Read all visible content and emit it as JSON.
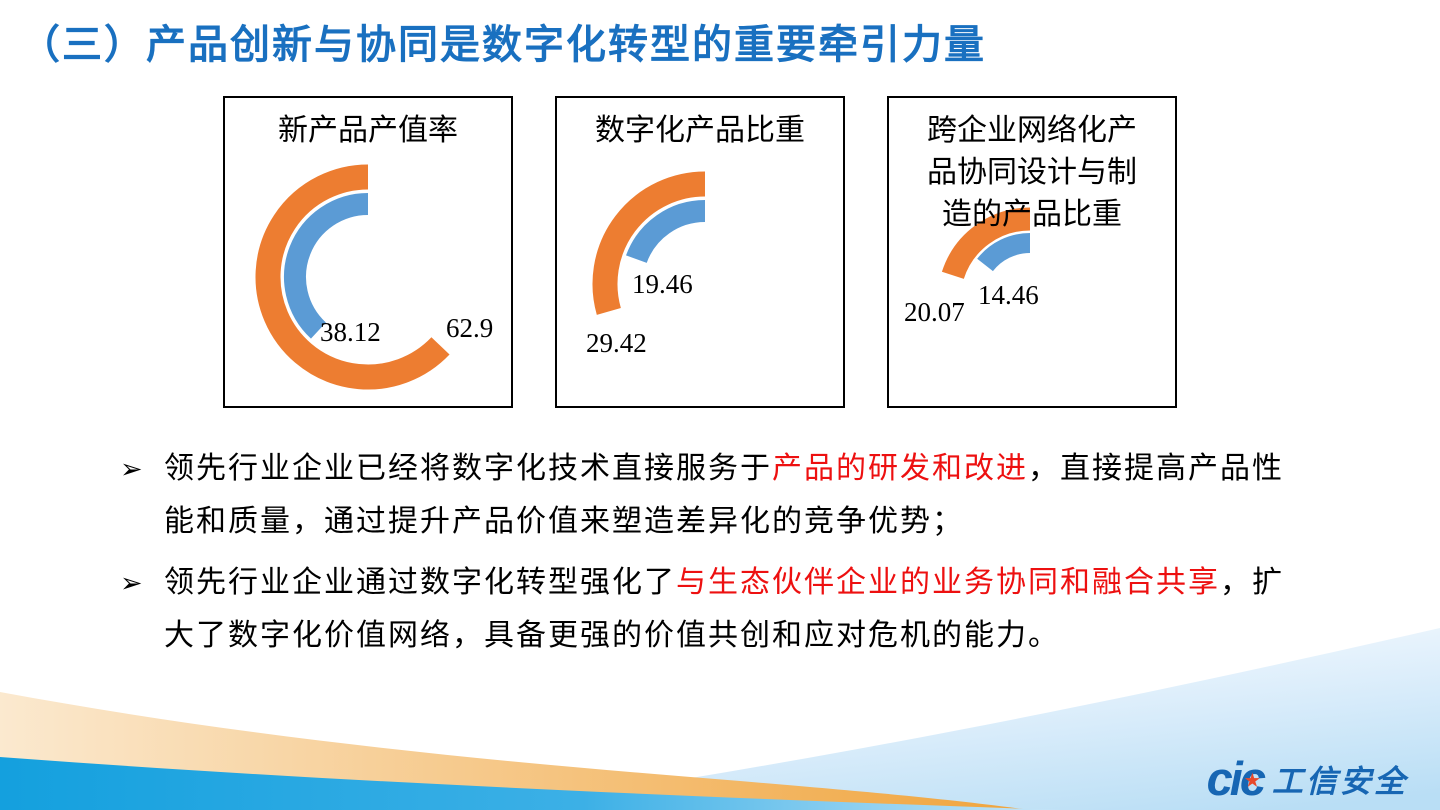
{
  "slide": {
    "title": "（三）产品创新与协同是数字化转型的重要牵引力量"
  },
  "colors": {
    "title": "#1970c0",
    "orange": "#ED7D31",
    "blue": "#5B9BD5",
    "red_text": "#ed1010",
    "body_text": "#000000",
    "logo_blue": "#1766b3",
    "logo_star": "#e8492b",
    "footer_blue": "#14a0de",
    "footer_orange": "#f0a43c",
    "footer_lightblue": "#b9def5"
  },
  "chart_data": [
    {
      "type": "radial_bar",
      "title": "新产品产值率",
      "direction": "counterclockwise_from_top",
      "value_range": [
        0,
        100
      ],
      "series": [
        {
          "name": "orange",
          "value": 62.9,
          "label": "62.9"
        },
        {
          "name": "blue",
          "value": 38.12,
          "label": "38.12"
        }
      ]
    },
    {
      "type": "radial_bar",
      "title": "数字化产品比重",
      "direction": "counterclockwise_from_top",
      "value_range": [
        0,
        100
      ],
      "series": [
        {
          "name": "orange",
          "value": 29.42,
          "label": "29.42"
        },
        {
          "name": "blue",
          "value": 19.46,
          "label": "19.46"
        }
      ]
    },
    {
      "type": "radial_bar",
      "title": "跨企业网络化产\n品协同设计与制\n造的产品比重",
      "direction": "counterclockwise_from_top",
      "value_range": [
        0,
        100
      ],
      "series": [
        {
          "name": "orange",
          "value": 20.07,
          "label": "20.07"
        },
        {
          "name": "blue",
          "value": 14.46,
          "label": "14.46"
        }
      ]
    }
  ],
  "bullets": [
    {
      "marker": "➢",
      "segments": [
        {
          "text": "领先行业企业已经将数字化技术直接服务于",
          "color": "#000000"
        },
        {
          "text": "产品的研发和改进",
          "color": "#ed1010"
        },
        {
          "text": "，直接提高产品性能和质量，通过提升产品价值来塑造差异化的竞争优势；",
          "color": "#000000"
        }
      ]
    },
    {
      "marker": "➢",
      "segments": [
        {
          "text": "领先行业企业通过数字化转型强化了",
          "color": "#000000"
        },
        {
          "text": "与生态伙伴企业的业务协同和融合共享",
          "color": "#ed1010"
        },
        {
          "text": "，扩大了数字化价值网络，具备更强的价值共创和应对危机的能力。",
          "color": "#000000"
        }
      ]
    }
  ],
  "logo": {
    "cic": "cic",
    "star": "★",
    "text": "工信安全"
  }
}
